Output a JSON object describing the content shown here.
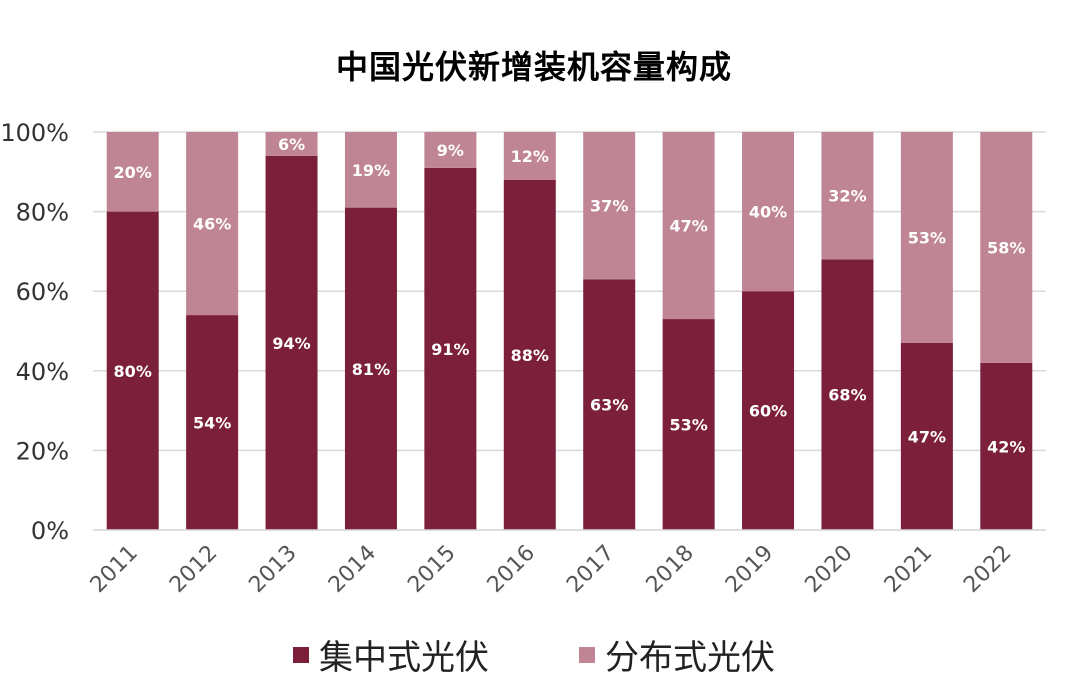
{
  "chart_data": {
    "type": "bar",
    "stacked": true,
    "title": "中国光伏新增装机容量构成",
    "xlabel": "",
    "ylabel": "",
    "ylim": [
      0,
      100
    ],
    "yticks": [
      "0%",
      "20%",
      "40%",
      "60%",
      "80%",
      "100%"
    ],
    "ytick_values": [
      0,
      20,
      40,
      60,
      80,
      100
    ],
    "categories": [
      "2011",
      "2012",
      "2013",
      "2014",
      "2015",
      "2016",
      "2017",
      "2018",
      "2019",
      "2020",
      "2021",
      "2022"
    ],
    "series": [
      {
        "name": "集中式光伏",
        "color": "#7b1f3a",
        "values": [
          80,
          54,
          94,
          81,
          91,
          88,
          63,
          53,
          60,
          68,
          47,
          42
        ],
        "labels": [
          "80%",
          "54%",
          "94%",
          "81%",
          "91%",
          "88%",
          "63%",
          "53%",
          "60%",
          "68%",
          "47%",
          "42%"
        ]
      },
      {
        "name": "分布式光伏",
        "color": "#c08594",
        "values": [
          20,
          46,
          6,
          19,
          9,
          12,
          37,
          47,
          40,
          32,
          53,
          58
        ],
        "labels": [
          "20%",
          "46%",
          "6%",
          "19%",
          "9%",
          "12%",
          "37%",
          "47%",
          "40%",
          "32%",
          "53%",
          "58%"
        ]
      }
    ],
    "grid": true,
    "legend_position": "bottom-center"
  }
}
